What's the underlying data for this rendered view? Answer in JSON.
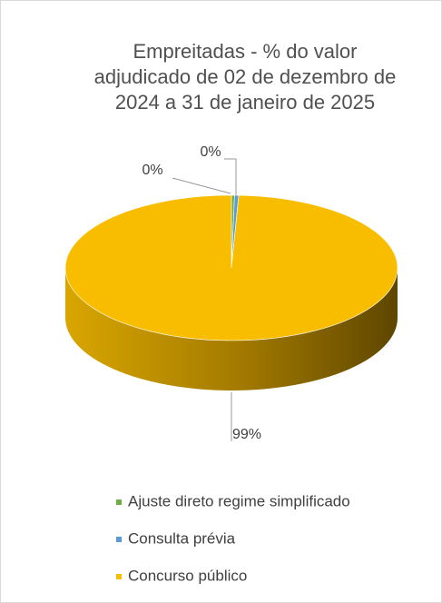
{
  "chart_data": {
    "type": "pie3d",
    "title": [
      "Empreitadas - % do valor",
      "adjudicado de 02 de dezembro de",
      "2024 a 31 de janeiro de 2025"
    ],
    "categories": [
      "Ajuste direto regime simplificado",
      "Consulta prévia",
      "Concurso público"
    ],
    "values": [
      0.3,
      0.4,
      99.3
    ],
    "value_labels": [
      "0%",
      "0%",
      "99%"
    ],
    "colors": [
      "#70ad47",
      "#5b9bd5",
      "#f9bd00"
    ],
    "legend": "bottom"
  }
}
